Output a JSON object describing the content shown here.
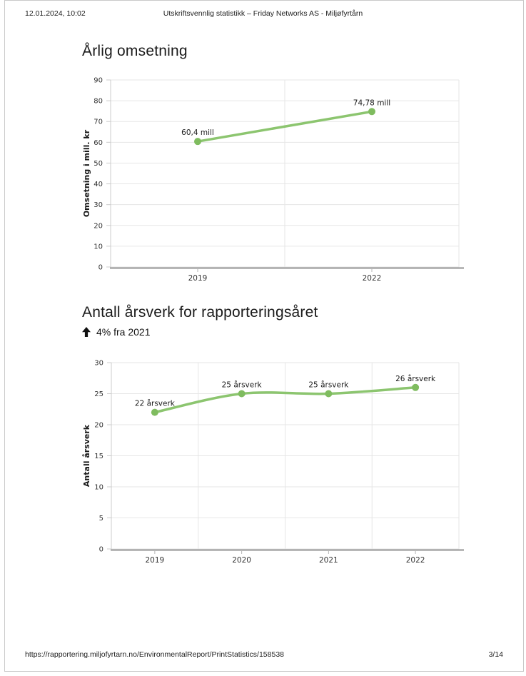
{
  "header": {
    "datetime": "12.01.2024, 10:02",
    "title": "Utskriftsvennlig statistikk – Friday Networks AS - Miljøfyrtårn"
  },
  "footer": {
    "url": "https://rapportering.miljofyrtarn.no/EnvironmentalReport/PrintStatistics/158538",
    "page": "3/14"
  },
  "chart_data": [
    {
      "type": "line",
      "title": "Årlig omsetning",
      "categories": [
        "2019",
        "2022"
      ],
      "values": [
        60.4,
        74.78
      ],
      "data_labels": [
        "60,4 mill",
        "74,78 mill"
      ],
      "xlabel": "",
      "ylabel": "Omsetning i mill. kr",
      "ylim": [
        0,
        90
      ],
      "ytick_step": 10,
      "grid": true,
      "legend": "none",
      "line_color": "#8cc56f",
      "marker_color": "#7fbc5f"
    },
    {
      "type": "line",
      "title": "Antall årsverk for rapporteringsåret",
      "subtitle": "4% fra 2021",
      "subtitle_icon": "up-arrow-icon",
      "categories": [
        "2019",
        "2020",
        "2021",
        "2022"
      ],
      "values": [
        22,
        25,
        25,
        26
      ],
      "data_labels": [
        "22 årsverk",
        "25 årsverk",
        "25 årsverk",
        "26 årsverk"
      ],
      "xlabel": "",
      "ylabel": "Antall årsverk",
      "ylim": [
        0,
        30
      ],
      "ytick_step": 5,
      "grid": true,
      "legend": "none",
      "line_color": "#8cc56f",
      "marker_color": "#7fbc5f"
    }
  ]
}
